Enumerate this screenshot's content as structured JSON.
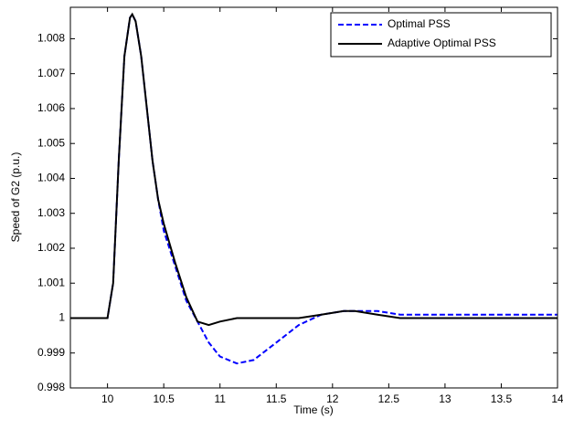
{
  "chart_data": {
    "type": "line",
    "x_label": "Time (s)",
    "y_label": "Speed of G2 (p.u.)",
    "x": [
      9.67,
      10,
      10.05,
      10.1,
      10.15,
      10.2,
      10.22,
      10.25,
      10.3,
      10.35,
      10.4,
      10.45,
      10.5,
      10.6,
      10.7,
      10.8,
      10.9,
      11,
      11.15,
      11.3,
      11.5,
      11.7,
      11.9,
      12.1,
      12.2,
      12.4,
      12.6,
      12.8,
      13,
      13.5,
      14
    ],
    "series": [
      {
        "name": "Optimal PSS",
        "color": "#0000ff",
        "dash": true,
        "values": [
          1,
          1,
          1.001,
          1.0045,
          1.0075,
          1.0086,
          1.0087,
          1.0085,
          1.0075,
          1.006,
          1.0045,
          1.0034,
          1.0025,
          1.0015,
          1.0005,
          0.9999,
          0.9993,
          0.9989,
          0.9987,
          0.9988,
          0.9993,
          0.9998,
          1.0001,
          1.0002,
          1.0002,
          1.0002,
          1.0001,
          1.0001,
          1.0001,
          1.0001,
          1.0001
        ]
      },
      {
        "name": "Adaptive Optimal PSS",
        "color": "#000000",
        "dash": false,
        "values": [
          1,
          1,
          1.001,
          1.0045,
          1.0075,
          1.0086,
          1.0087,
          1.0085,
          1.0075,
          1.006,
          1.0045,
          1.0034,
          1.0027,
          1.0016,
          1.0006,
          0.9999,
          0.9998,
          0.9999,
          1,
          1,
          1,
          1,
          1.0001,
          1.0002,
          1.0002,
          1.0001,
          1,
          1,
          1,
          1,
          1
        ]
      }
    ],
    "xlim": [
      9.67,
      14
    ],
    "ylim": [
      0.998,
      1.0089
    ],
    "xticks": [
      10,
      10.5,
      11,
      11.5,
      12,
      12.5,
      13,
      13.5,
      14
    ],
    "yticks": [
      0.998,
      0.999,
      1,
      1.001,
      1.002,
      1.003,
      1.004,
      1.005,
      1.006,
      1.007,
      1.008
    ],
    "legend": "top-right"
  }
}
